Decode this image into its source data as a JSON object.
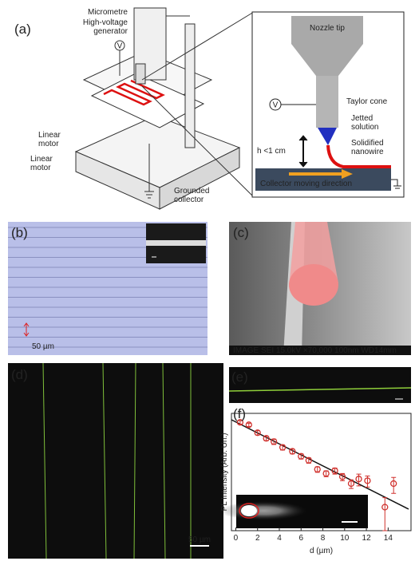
{
  "panel_labels": [
    "(a)",
    "(b)",
    "(c)",
    "(d)",
    "(e)",
    "(f)"
  ],
  "diagram_a": {
    "labels": [
      [
        "Micrometre"
      ],
      [
        "High-voltage",
        "generator"
      ],
      [
        "Linear",
        "motor"
      ],
      [
        "Linear",
        "motor"
      ],
      [
        "Grounded",
        "collector"
      ]
    ],
    "voltage_symbol": "V"
  },
  "inset_a": {
    "labels": [
      [
        "Nozzle tip"
      ],
      [
        "Taylor cone"
      ],
      [
        "Jetted",
        "solution"
      ],
      [
        "Solidified",
        "nanowire"
      ],
      [
        "Collector moving direction"
      ]
    ],
    "height": "h <1 cm",
    "voltage_symbol": "V"
  },
  "panel_b": {
    "scale_bar": "50 µm"
  },
  "panel_c": {
    "info_bar": "IMAGE SEI 15.0kV ×70,000 100nm WD14mm"
  },
  "panel_d": {
    "scale_bar": "50 µm"
  },
  "chart_data": {
    "type": "scatter",
    "x_label": "d (µm)",
    "y_label": "PL Intensity (Arb. Un.)",
    "log_y": true,
    "color": "#d0312d",
    "x": [
      0.4,
      1.2,
      2.0,
      2.8,
      3.5,
      4.3,
      5.2,
      6.0,
      6.7,
      7.5,
      8.3,
      9.1,
      9.8,
      10.6,
      11.3,
      12.1,
      13.7,
      14.5
    ],
    "values": [
      0.59,
      0.51,
      0.32,
      0.23,
      0.19,
      0.135,
      0.107,
      0.08,
      0.063,
      0.037,
      0.029,
      0.034,
      0.024,
      0.016,
      0.021,
      0.019,
      0.004,
      0.016
    ],
    "errors": [
      0.06,
      0.05,
      0.04,
      0.03,
      0.03,
      0.02,
      0.015,
      0.012,
      0.01,
      0.006,
      0.005,
      0.006,
      0.005,
      0.004,
      0.007,
      0.006,
      0.003,
      0.007
    ],
    "xlim": [
      -0.4,
      16.1
    ],
    "ylim": [
      0.001,
      1
    ],
    "xticks": [
      0,
      2,
      4,
      6,
      8,
      10,
      12,
      14
    ]
  }
}
